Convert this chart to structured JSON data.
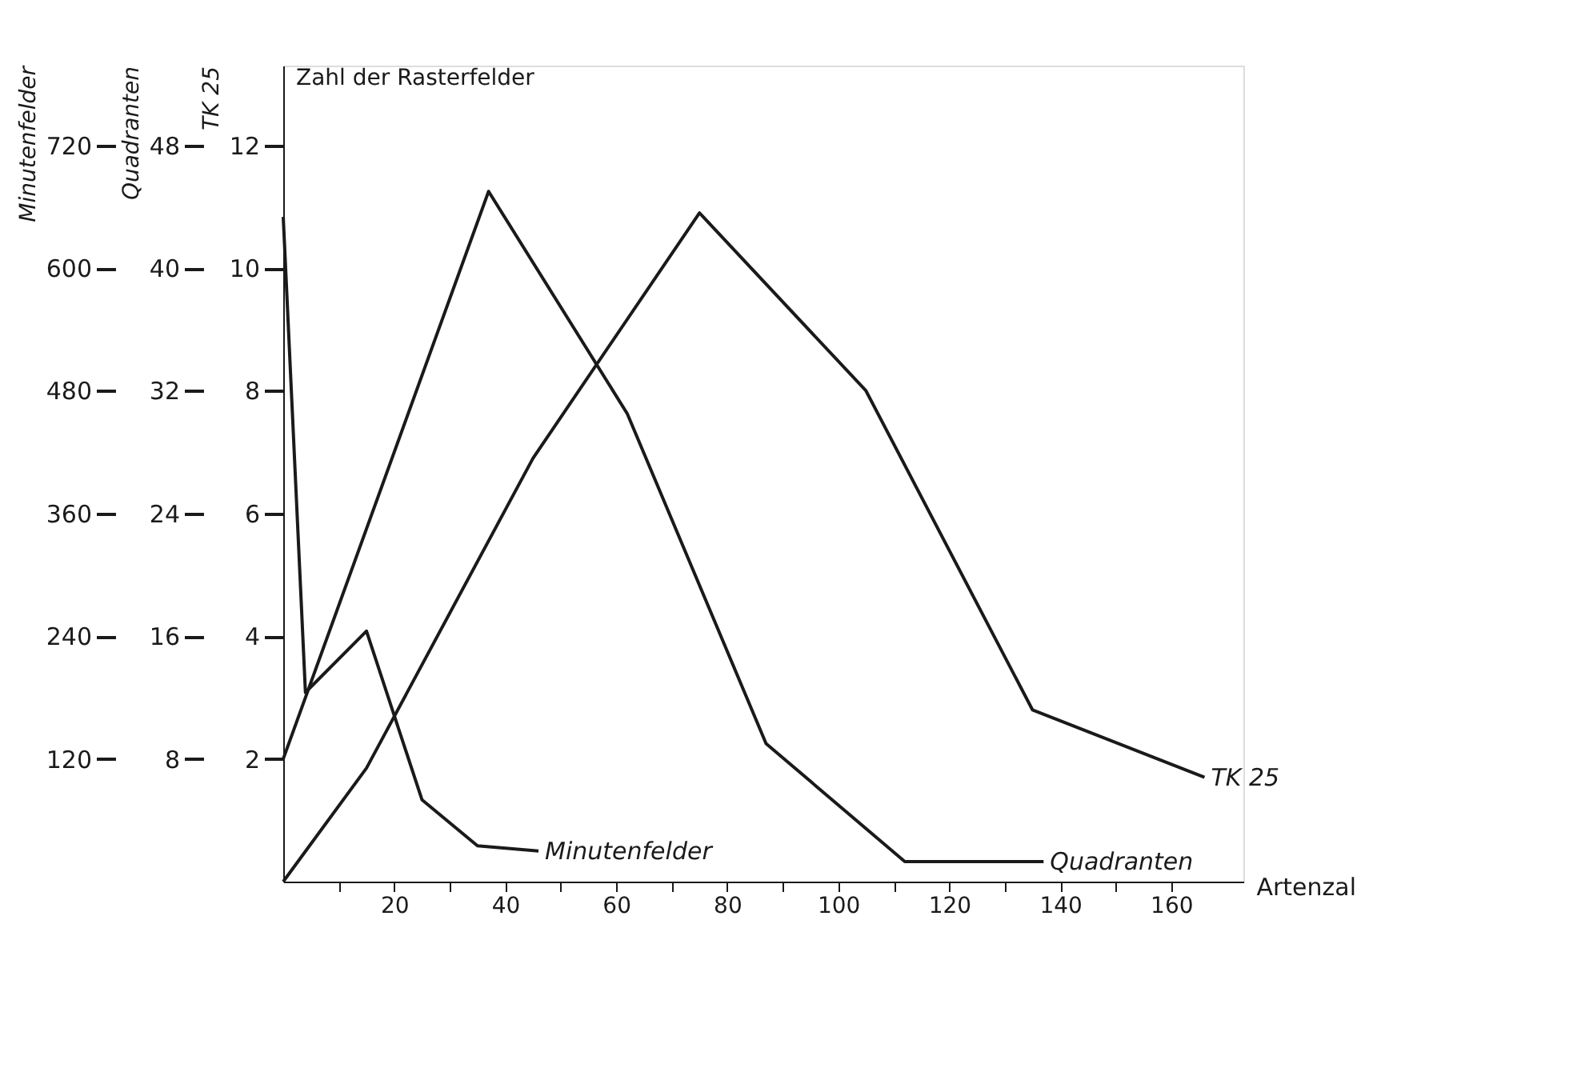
{
  "chart_data": {
    "type": "line",
    "xlabel": "Artenzal",
    "ylabel": "TK 25",
    "y2label": "Quadranten",
    "y3label": "Minutenfelder",
    "annotations": [
      "Zahl der Rasterfelder"
    ],
    "xlim": [
      0,
      173
    ],
    "xticks": [
      {
        "value": 10,
        "label": null
      },
      20,
      {
        "value": 30,
        "label": null
      },
      40,
      {
        "value": 50,
        "label": null
      },
      60,
      {
        "value": 70,
        "label": null
      },
      80,
      {
        "value": 90,
        "label": null
      },
      100,
      {
        "value": 110,
        "label": null
      },
      120,
      {
        "value": 130,
        "label": null
      },
      140,
      {
        "value": 150,
        "label": null
      },
      160
    ],
    "ylim": [
      0,
      13.3
    ],
    "yticks": [
      2,
      4,
      6,
      8,
      10,
      12
    ],
    "y2lim": [
      0,
      53.2
    ],
    "y2ticks": [
      8,
      16,
      24,
      32,
      40,
      48
    ],
    "y3lim": [
      0,
      798
    ],
    "y3ticks": [
      120,
      240,
      360,
      480,
      600,
      720
    ],
    "grid": false,
    "marker": "none",
    "line_style": "solid",
    "series": [
      {
        "name": "Minutenfelder",
        "color": "#1a1a1a",
        "axis": "y3",
        "x": [
          0,
          4,
          15,
          25,
          35,
          46
        ],
        "values": [
          650,
          185,
          245,
          80,
          35,
          30
        ]
      },
      {
        "name": "Quadranten",
        "color": "#1a1a1a",
        "axis": "y2",
        "x": [
          0,
          37,
          62,
          87,
          112,
          137
        ],
        "values": [
          8,
          45,
          30.5,
          9,
          1.3,
          1.3
        ]
      },
      {
        "name": "TK 25",
        "color": "#1a1a1a",
        "axis": "y",
        "x": [
          0,
          15,
          45,
          75,
          105,
          135,
          166
        ],
        "values": [
          0,
          1.85,
          6.9,
          10.9,
          8,
          2.8,
          1.7
        ]
      }
    ]
  }
}
